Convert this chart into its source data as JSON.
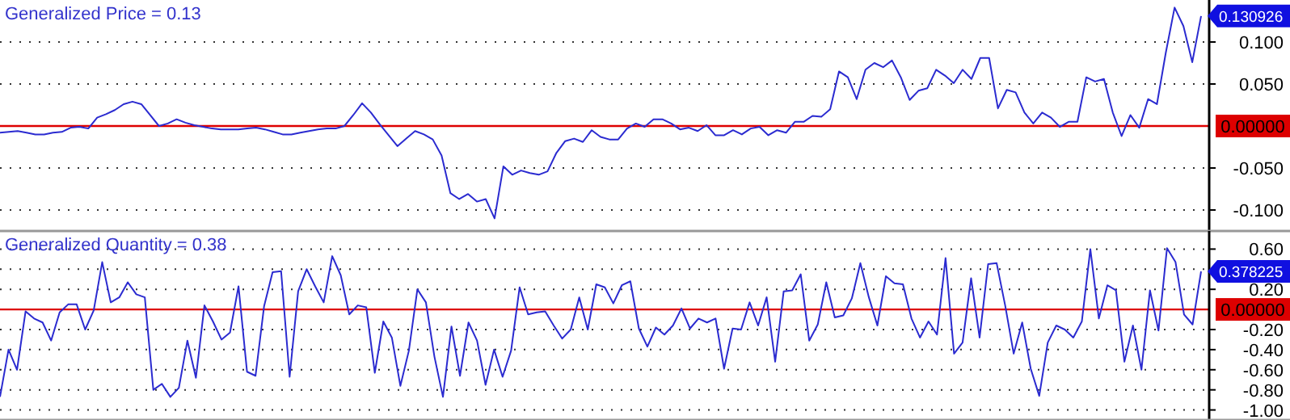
{
  "chart_data": [
    {
      "type": "line",
      "title": "Generalized Price = 0.13",
      "categories": [
        null,
        null,
        null,
        null,
        null,
        null,
        null,
        null,
        null,
        null,
        null,
        null,
        null,
        null,
        null,
        null,
        null,
        null,
        null,
        null,
        null,
        null,
        null,
        null,
        null,
        null,
        null,
        null,
        null,
        null,
        null,
        null,
        null,
        null,
        null,
        null,
        null,
        null,
        null,
        null,
        null,
        null,
        null,
        null,
        null,
        null,
        null,
        null,
        null,
        null,
        null,
        null,
        null,
        null,
        null,
        null,
        null,
        null,
        null,
        null,
        null,
        null,
        null,
        null,
        null,
        null,
        null,
        null,
        null,
        null,
        null,
        null,
        null,
        null,
        null,
        null,
        null,
        null,
        null,
        null,
        null,
        null,
        null,
        null,
        null,
        null,
        null,
        null,
        null,
        null,
        null,
        null,
        null,
        null,
        null,
        null,
        null,
        null,
        null,
        null,
        null,
        null,
        null,
        null,
        null,
        null,
        null,
        null,
        null,
        null,
        null,
        null,
        null,
        null,
        null,
        null,
        null,
        null,
        null,
        null,
        null,
        null,
        null,
        null,
        null,
        null,
        null,
        null,
        null,
        null,
        null,
        null,
        null,
        null,
        null,
        null,
        null
      ],
      "series": [
        {
          "color": "#2b2bd0",
          "values": [
            -0.008,
            -0.007,
            -0.006,
            -0.008,
            -0.01,
            -0.01,
            -0.008,
            -0.007,
            -0.002,
            -0.001,
            -0.003,
            0.01,
            0.014,
            0.019,
            0.026,
            0.029,
            0.026,
            0.013,
            0,
            0.003,
            0.008,
            0.004,
            0.001,
            -0.001,
            -0.003,
            -0.004,
            -0.004,
            -0.004,
            -0.003,
            -0.002,
            -0.004,
            -0.007,
            -0.01,
            -0.01,
            -0.008,
            -0.006,
            -0.004,
            -0.003,
            -0.003,
            0,
            0.013,
            0.027,
            0.016,
            0.002,
            -0.011,
            -0.024,
            -0.015,
            -0.006,
            -0.01,
            -0.016,
            -0.035,
            -0.08,
            -0.087,
            -0.081,
            -0.09,
            -0.087,
            -0.11,
            -0.048,
            -0.058,
            -0.053,
            -0.056,
            -0.058,
            -0.054,
            -0.032,
            -0.018,
            -0.015,
            -0.019,
            -0.005,
            -0.013,
            -0.016,
            -0.016,
            -0.003,
            0.003,
            -0.001,
            0.008,
            0.008,
            0.003,
            -0.004,
            -0.002,
            -0.006,
            0.001,
            -0.011,
            -0.011,
            -0.005,
            -0.01,
            -0.003,
            -0.001,
            -0.011,
            -0.005,
            -0.008,
            0.005,
            0.005,
            0.012,
            0.011,
            0.02,
            0.065,
            0.058,
            0.032,
            0.067,
            0.075,
            0.07,
            0.078,
            0.058,
            0.031,
            0.042,
            0.045,
            0.067,
            0.06,
            0.051,
            0.067,
            0.056,
            0.081,
            0.081,
            0.021,
            0.043,
            0.04,
            0.016,
            0.003,
            0.016,
            0.01,
            -0.001,
            0.005,
            0.005,
            0.058,
            0.053,
            0.056,
            0.016,
            -0.012,
            0.013,
            -0.002,
            0.032,
            0.026,
            0.087,
            0.141,
            0.119,
            0.076,
            0.130926
          ]
        }
      ],
      "ylim": [
        -0.125,
        0.15
      ],
      "yticks": [
        {
          "value": 0.1,
          "label": "0.100"
        },
        {
          "value": 0.05,
          "label": "0.050"
        },
        {
          "value": 0,
          "label": null
        },
        {
          "value": -0.05,
          "label": "-0.050"
        },
        {
          "value": -0.1,
          "label": "-0.100"
        }
      ],
      "tick_labels": "y",
      "grid": "y",
      "ref_lines": [
        {
          "axis": "y",
          "value": 0,
          "label": "0.00000",
          "color": "#dd0000"
        }
      ],
      "annotations": [
        "0.130926"
      ]
    },
    {
      "type": "line",
      "title": "Generalized Quantity = 0.38",
      "categories": [
        null,
        null,
        null,
        null,
        null,
        null,
        null,
        null,
        null,
        null,
        null,
        null,
        null,
        null,
        null,
        null,
        null,
        null,
        null,
        null,
        null,
        null,
        null,
        null,
        null,
        null,
        null,
        null,
        null,
        null,
        null,
        null,
        null,
        null,
        null,
        null,
        null,
        null,
        null,
        null,
        null,
        null,
        null,
        null,
        null,
        null,
        null,
        null,
        null,
        null,
        null,
        null,
        null,
        null,
        null,
        null,
        null,
        null,
        null,
        null,
        null,
        null,
        null,
        null,
        null,
        null,
        null,
        null,
        null,
        null,
        null,
        null,
        null,
        null,
        null,
        null,
        null,
        null,
        null,
        null,
        null,
        null,
        null,
        null,
        null,
        null,
        null,
        null,
        null,
        null,
        null,
        null,
        null,
        null,
        null,
        null,
        null,
        null,
        null,
        null,
        null,
        null,
        null,
        null,
        null,
        null,
        null,
        null,
        null,
        null,
        null,
        null,
        null,
        null,
        null,
        null,
        null,
        null,
        null,
        null,
        null,
        null,
        null,
        null,
        null,
        null,
        null,
        null,
        null,
        null,
        null,
        null,
        null,
        null,
        null,
        null,
        null,
        null,
        null,
        null,
        null,
        null
      ],
      "series": [
        {
          "color": "#2b2bd0",
          "values": [
            -0.87,
            -0.4,
            -0.6,
            -0.02,
            -0.09,
            -0.13,
            -0.31,
            -0.03,
            0.05,
            0.05,
            -0.2,
            -0.01,
            0.47,
            0.07,
            0.12,
            0.27,
            0.15,
            0.12,
            -0.8,
            -0.74,
            -0.87,
            -0.78,
            -0.31,
            -0.68,
            0.04,
            -0.12,
            -0.3,
            -0.23,
            0.23,
            -0.62,
            -0.66,
            0.03,
            0.37,
            0.38,
            -0.67,
            0.18,
            0.4,
            0.23,
            0.07,
            0.53,
            0.34,
            -0.05,
            0.04,
            0.02,
            -0.63,
            -0.12,
            -0.28,
            -0.76,
            -0.41,
            0.2,
            0.07,
            -0.47,
            -0.87,
            -0.17,
            -0.66,
            -0.13,
            -0.31,
            -0.75,
            -0.4,
            -0.67,
            -0.41,
            0.22,
            -0.05,
            -0.03,
            -0.02,
            -0.16,
            -0.29,
            -0.2,
            0.12,
            -0.2,
            0.25,
            0.22,
            0.06,
            0.24,
            0.28,
            -0.19,
            -0.37,
            -0.18,
            -0.25,
            -0.16,
            0.01,
            -0.19,
            -0.09,
            -0.13,
            -0.09,
            -0.59,
            -0.19,
            -0.2,
            0.07,
            -0.16,
            0.12,
            -0.52,
            0.18,
            0.19,
            0.35,
            -0.31,
            -0.15,
            0.27,
            -0.08,
            -0.06,
            0.11,
            0.46,
            0.12,
            -0.16,
            0.33,
            0.26,
            0.25,
            -0.09,
            -0.28,
            -0.12,
            -0.25,
            0.51,
            -0.44,
            -0.33,
            0.31,
            -0.28,
            0.45,
            0.46,
            0.04,
            -0.44,
            -0.13,
            -0.59,
            -0.86,
            -0.33,
            -0.16,
            -0.2,
            -0.28,
            -0.12,
            0.6,
            -0.09,
            0.24,
            0.19,
            -0.52,
            -0.16,
            -0.6,
            0.19,
            -0.21,
            0.61,
            0.47,
            -0.05,
            -0.15,
            0.378225
          ]
        }
      ],
      "ylim": [
        -1.1,
        0.78
      ],
      "yticks": [
        {
          "value": 0.6,
          "label": "0.60"
        },
        {
          "value": 0.4,
          "label": null
        },
        {
          "value": 0.2,
          "label": "0.20"
        },
        {
          "value": 0,
          "label": null
        },
        {
          "value": -0.2,
          "label": "-0.20"
        },
        {
          "value": -0.4,
          "label": "-0.40"
        },
        {
          "value": -0.6,
          "label": "-0.60"
        },
        {
          "value": -0.8,
          "label": "-0.80"
        },
        {
          "value": -1,
          "label": "-1.00"
        }
      ],
      "tick_labels": "y",
      "grid": "y",
      "ref_lines": [
        {
          "axis": "y",
          "value": 0,
          "label": "0.00000",
          "color": "#dd0000"
        }
      ],
      "annotations": [
        "0.378225"
      ]
    }
  ]
}
